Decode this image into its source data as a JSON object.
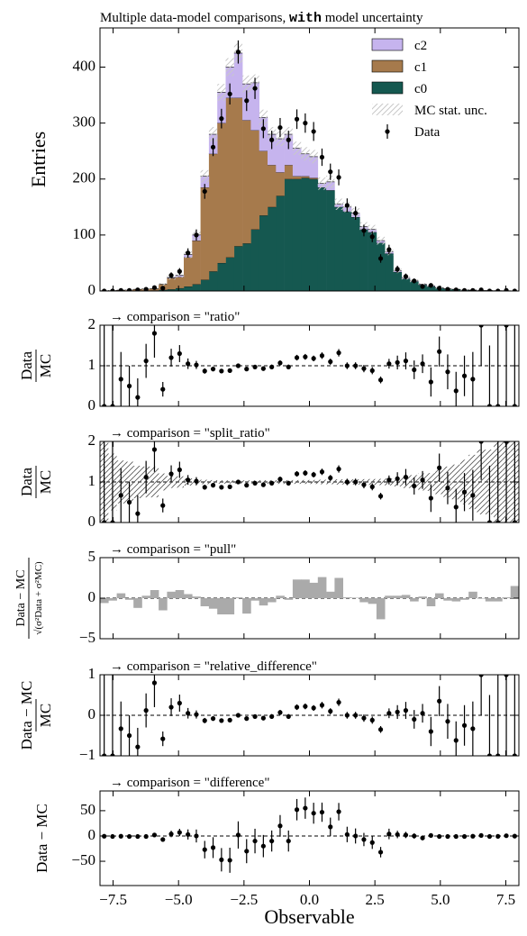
{
  "chart_data": [
    {
      "type": "stacked_histogram",
      "title": [
        "Multiple data-model comparisons, ",
        "with",
        " model uncertainty"
      ],
      "ylabel": "Entries",
      "bins": [
        -8,
        -7.68,
        -7.36,
        -7.04,
        -6.72,
        -6.4,
        -6.08,
        -5.76,
        -5.44,
        -5.12,
        -4.8,
        -4.48,
        -4.16,
        -3.84,
        -3.52,
        -3.2,
        -2.88,
        -2.56,
        -2.24,
        -1.92,
        -1.6,
        -1.28,
        -0.96,
        -0.64,
        -0.32,
        0,
        0.32,
        0.64,
        0.96,
        1.28,
        1.6,
        1.92,
        2.24,
        2.56,
        2.88,
        3.2,
        3.52,
        3.84,
        4.16,
        4.48,
        4.8,
        5.12,
        5.44,
        5.76,
        6.08,
        6.4,
        6.72,
        7.04,
        7.36,
        7.68,
        8
      ],
      "xlim": [
        -8,
        8
      ],
      "ylim": [
        0,
        470
      ],
      "yticks": [
        0,
        100,
        200,
        300,
        400
      ],
      "legend": "upper right",
      "series": [
        {
          "name": "c0",
          "color": "#155850",
          "values": [
            0,
            0,
            0,
            0,
            0,
            0,
            1,
            2,
            3,
            5,
            8,
            12,
            20,
            35,
            50,
            60,
            80,
            85,
            110,
            135,
            150,
            170,
            200,
            200,
            202,
            200,
            185,
            180,
            150,
            142,
            132,
            110,
            105,
            86,
            67,
            34,
            22,
            17,
            11,
            8,
            5.5,
            3.7,
            2.8,
            1.9,
            1.4,
            0.9,
            0.9,
            0.6,
            0.5,
            0.3
          ]
        },
        {
          "name": "c1",
          "color": "#a67a4c",
          "values": [
            0.5,
            1,
            1.5,
            2,
            3,
            4,
            3,
            10,
            20,
            20,
            52,
            78,
            165,
            210,
            250,
            285,
            265,
            220,
            177,
            115,
            75,
            42,
            25,
            5,
            3,
            2,
            0,
            0,
            0,
            0,
            0,
            0,
            0,
            0,
            0,
            0,
            0,
            0,
            0,
            0,
            0,
            0,
            0,
            0,
            0,
            0,
            0,
            0,
            0,
            0
          ]
        },
        {
          "name": "c2",
          "color": "#c6b4ee",
          "values": [
            0,
            0,
            0,
            0,
            0,
            0,
            0,
            0,
            1,
            3,
            5,
            10,
            20,
            35,
            55,
            55,
            80,
            65,
            85,
            60,
            55,
            60,
            55,
            50,
            40,
            38,
            7,
            15,
            5,
            8,
            7,
            5,
            5,
            4,
            3,
            2,
            2,
            1,
            1,
            1,
            0.5,
            0.3,
            0.2,
            0.1,
            0.1,
            0,
            0,
            0,
            0,
            0
          ]
        }
      ],
      "uncertainty": {
        "name": "MC stat. unc.",
        "values": [
          0.5,
          0.7,
          0.8,
          1,
          1.2,
          1.5,
          1.5,
          2.5,
          3.5,
          4,
          6,
          8,
          11,
          13,
          15,
          16,
          17,
          15,
          15,
          14,
          13,
          13,
          13,
          12,
          12,
          12,
          11,
          11,
          10,
          9,
          9,
          8,
          8,
          7,
          6,
          4,
          3.5,
          3,
          2.5,
          2,
          1.8,
          1.5,
          1.3,
          1.1,
          1,
          0.8,
          0.8,
          0.7,
          0.6,
          0.5
        ]
      },
      "data": {
        "name": "Data",
        "values": [
          0,
          0,
          1,
          1,
          2,
          3,
          6,
          5,
          28,
          35,
          68,
          100,
          178,
          257,
          308,
          352,
          427,
          340,
          362,
          290,
          270,
          292,
          270,
          307,
          300,
          285,
          239,
          213,
          203,
          153,
          139,
          108,
          97,
          58,
          74,
          39,
          26,
          18,
          8,
          10,
          5,
          3,
          2,
          1,
          1,
          2,
          0,
          0,
          1,
          0
        ],
        "errors": [
          0,
          0,
          1,
          1,
          1.4,
          1.7,
          2.4,
          2.2,
          5.3,
          5.9,
          8.2,
          10,
          13.3,
          16,
          17.5,
          18.8,
          20.7,
          18.4,
          19,
          17,
          16.4,
          17.1,
          16.4,
          17.5,
          17.3,
          16.9,
          15.5,
          14.6,
          14.2,
          12.4,
          11.8,
          10.4,
          9.8,
          7.6,
          8.6,
          6.2,
          5.1,
          4.2,
          2.8,
          3.2,
          2.2,
          1.7,
          1.4,
          1,
          1,
          1.4,
          0,
          0,
          1,
          0
        ]
      }
    },
    {
      "type": "errorbar",
      "annotation": "→ comparison = \"ratio\"",
      "ylabel": {
        "numerator": "Data",
        "denominator": "MC"
      },
      "ylim": [
        0,
        2
      ],
      "yticks": [
        0,
        1,
        2
      ],
      "reference": 1,
      "values": [
        0,
        0,
        0.67,
        0.5,
        0.22,
        1.12,
        1.8,
        0.42,
        1.2,
        1.3,
        1.05,
        1.02,
        0.87,
        0.92,
        0.87,
        0.88,
        1.0,
        0.92,
        0.97,
        0.93,
        0.97,
        1.07,
        0.97,
        1.2,
        1.22,
        1.18,
        1.25,
        1.1,
        1.32,
        1.0,
        1.0,
        0.93,
        0.88,
        0.65,
        1.05,
        1.08,
        1.12,
        0.9,
        1.05,
        0.6,
        1.35,
        0.85,
        0.38,
        0.75,
        0.67,
        2.0,
        0,
        0,
        2.0,
        0
      ],
      "errors": [
        2,
        2,
        0.67,
        0.5,
        0.47,
        0.42,
        0.6,
        0.18,
        0.22,
        0.21,
        0.13,
        0.1,
        0.065,
        0.057,
        0.049,
        0.047,
        0.049,
        0.05,
        0.051,
        0.055,
        0.059,
        0.063,
        0.059,
        0.069,
        0.071,
        0.07,
        0.081,
        0.075,
        0.092,
        0.083,
        0.085,
        0.09,
        0.089,
        0.084,
        0.12,
        0.17,
        0.21,
        0.23,
        0.23,
        0.36,
        0.37,
        0.43,
        0.47,
        0.5,
        0.67,
        1.0,
        1.5,
        2,
        2,
        3
      ]
    },
    {
      "type": "split_errorbar",
      "annotation": "→ comparison = \"split_ratio\"",
      "ylabel": {
        "numerator": "Data",
        "denominator": "MC"
      },
      "ylim": [
        0,
        2
      ],
      "yticks": [
        0,
        1,
        2
      ],
      "reference": 1,
      "values": [
        0,
        0,
        0.67,
        0.5,
        0.22,
        1.12,
        1.8,
        0.42,
        1.2,
        1.3,
        1.05,
        1.02,
        0.87,
        0.92,
        0.87,
        0.88,
        1.0,
        0.92,
        0.97,
        0.93,
        0.97,
        1.07,
        0.97,
        1.2,
        1.22,
        1.18,
        1.25,
        1.1,
        1.32,
        1.0,
        1.0,
        0.93,
        0.88,
        0.65,
        1.05,
        1.08,
        1.12,
        0.9,
        1.05,
        0.6,
        1.35,
        0.85,
        0.38,
        0.75,
        0.67,
        2.0,
        0,
        0,
        2.0,
        0
      ],
      "errors": [
        2,
        2,
        0.67,
        0.5,
        0.45,
        0.4,
        0.55,
        0.17,
        0.21,
        0.2,
        0.12,
        0.1,
        0.06,
        0.055,
        0.047,
        0.045,
        0.048,
        0.048,
        0.05,
        0.053,
        0.057,
        0.061,
        0.057,
        0.067,
        0.069,
        0.068,
        0.079,
        0.073,
        0.09,
        0.08,
        0.082,
        0.087,
        0.086,
        0.082,
        0.11,
        0.16,
        0.2,
        0.21,
        0.22,
        0.34,
        0.35,
        0.4,
        0.45,
        0.47,
        0.63,
        0.95,
        1.4,
        2,
        2,
        3
      ],
      "band": [
        1.0,
        0.7,
        0.53,
        0.5,
        0.4,
        0.38,
        0.38,
        0.21,
        0.15,
        0.14,
        0.09,
        0.08,
        0.054,
        0.046,
        0.042,
        0.04,
        0.04,
        0.04,
        0.04,
        0.045,
        0.046,
        0.048,
        0.046,
        0.047,
        0.049,
        0.05,
        0.057,
        0.056,
        0.065,
        0.06,
        0.065,
        0.07,
        0.073,
        0.078,
        0.086,
        0.11,
        0.15,
        0.17,
        0.21,
        0.22,
        0.3,
        0.38,
        0.43,
        0.55,
        0.67,
        0.8,
        0.8,
        1.0,
        1.2,
        1.67
      ]
    },
    {
      "type": "bar",
      "annotation": "→ comparison = \"pull\"",
      "ylabel": {
        "numerator": "Data − MC",
        "denominator": "√(σ²Data + σ²MC)"
      },
      "ylim": [
        -5,
        5
      ],
      "yticks": [
        {
          "value": -5,
          "label": "−5"
        },
        0,
        5
      ],
      "reference": 0,
      "color": "#aaaaaa",
      "values": [
        -0.6,
        -0.3,
        0.6,
        -0.2,
        -1.2,
        0.3,
        1.0,
        -1.5,
        0.8,
        1.0,
        0.5,
        0.2,
        -1.0,
        -1.3,
        -2.0,
        -2.0,
        0.1,
        -1.9,
        -0.3,
        -0.9,
        -0.5,
        0.3,
        -0.2,
        2.3,
        2.3,
        1.9,
        2.6,
        0.8,
        2.5,
        0.1,
        0.05,
        -0.5,
        -0.7,
        -2.6,
        0.3,
        0.3,
        0.4,
        -0.4,
        0.2,
        -1.0,
        0.6,
        -0.3,
        -0.4,
        -0.2,
        0.8,
        -0.05,
        -0.4,
        -0.4,
        0.1,
        1.5
      ]
    },
    {
      "type": "errorbar",
      "annotation": "→ comparison = \"relative_difference\"",
      "ylabel": {
        "numerator": "Data − MC",
        "denominator": "MC"
      },
      "ylim": [
        -1,
        1
      ],
      "yticks": [
        {
          "value": -1,
          "label": "−1"
        },
        0,
        1
      ],
      "reference": 0,
      "values": [
        -1,
        -1,
        -0.33,
        -0.5,
        -0.78,
        0.12,
        0.8,
        -0.58,
        0.2,
        0.3,
        0.05,
        0.02,
        -0.13,
        -0.08,
        -0.13,
        -0.12,
        0,
        -0.08,
        -0.03,
        -0.07,
        -0.03,
        0.07,
        -0.03,
        0.2,
        0.22,
        0.18,
        0.25,
        0.1,
        0.32,
        0,
        0,
        -0.07,
        -0.12,
        -0.35,
        0.05,
        0.08,
        0.12,
        -0.1,
        0.05,
        -0.4,
        0.35,
        -0.15,
        -0.62,
        -0.25,
        -0.33,
        1.0,
        -1,
        -1,
        1.0,
        -1
      ],
      "errors": [
        2,
        2,
        0.67,
        0.5,
        0.47,
        0.42,
        0.6,
        0.18,
        0.22,
        0.21,
        0.13,
        0.1,
        0.065,
        0.057,
        0.049,
        0.047,
        0.049,
        0.05,
        0.051,
        0.055,
        0.059,
        0.063,
        0.059,
        0.069,
        0.071,
        0.07,
        0.081,
        0.075,
        0.092,
        0.083,
        0.085,
        0.09,
        0.089,
        0.084,
        0.12,
        0.17,
        0.21,
        0.23,
        0.23,
        0.36,
        0.37,
        0.43,
        0.47,
        0.5,
        0.67,
        1.0,
        1.5,
        2,
        2,
        3
      ]
    },
    {
      "type": "errorbar",
      "annotation": "→ comparison = \"difference\"",
      "ylabel": "Data − MC",
      "ylim": [
        -98,
        89
      ],
      "yticks": [
        {
          "value": -50,
          "label": "−50"
        },
        0,
        50
      ],
      "reference": 0,
      "xlabel": "Observable",
      "xticks": [
        {
          "value": -7.5,
          "label": "−7.5"
        },
        {
          "value": -5,
          "label": "−5.0"
        },
        {
          "value": -2.5,
          "label": "−2.5"
        },
        {
          "value": 0,
          "label": "0.0"
        },
        2.5,
        {
          "value": 5,
          "label": "5.0"
        },
        7.5
      ],
      "values": [
        -0.5,
        -1,
        -0.5,
        -1,
        -1,
        -1,
        2,
        -7,
        4,
        7,
        3,
        0,
        -27,
        -23,
        -47,
        -48,
        2,
        -30,
        -10,
        -20,
        -10,
        20,
        -10,
        52,
        55,
        45,
        47,
        18,
        48,
        3,
        0,
        -7,
        -13,
        -32,
        4,
        3,
        2,
        0,
        -4,
        1,
        -1,
        -1,
        -1,
        -1,
        -0.5,
        1,
        -1,
        -0.7,
        0.5,
        -0.3
      ],
      "errors": [
        1,
        1,
        1.3,
        1.4,
        1.8,
        2.3,
        2.8,
        3.4,
        6.4,
        7.2,
        10,
        12.8,
        17.3,
        20.6,
        23.1,
        24.8,
        26.9,
        23.8,
        24.3,
        22,
        20.8,
        21.4,
        20.8,
        21.1,
        21,
        20.7,
        19,
        18.3,
        17.3,
        15.3,
        14.9,
        13.1,
        12.6,
        10.3,
        10.4,
        7.4,
        6.2,
        5.2,
        3.8,
        3.8,
        2.8,
        2.3,
        1.9,
        1.5,
        1.4,
        1.6,
        0.8,
        0.7,
        1.2,
        0.5
      ]
    }
  ]
}
